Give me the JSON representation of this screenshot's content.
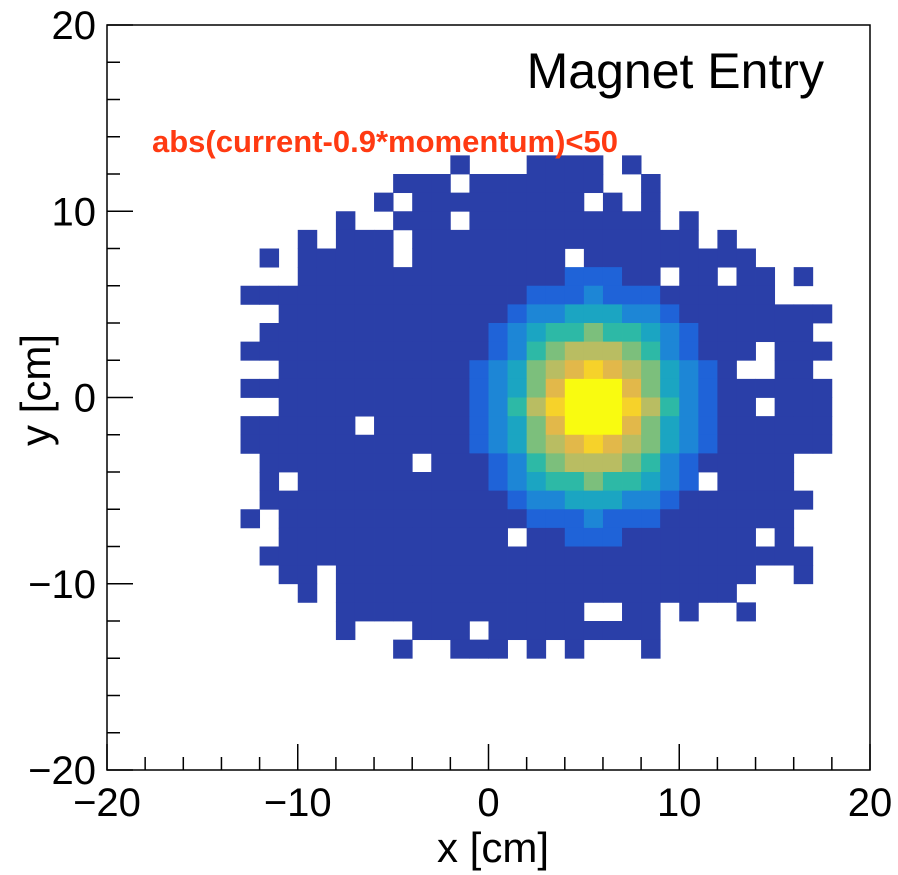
{
  "chart_data": {
    "type": "heatmap",
    "title": "Magnet Entry",
    "annotation": "abs(current-0.9*momentum)<50",
    "xlabel": "x [cm]",
    "ylabel": "y [cm]",
    "xlim": [
      -20,
      20
    ],
    "ylim": [
      -20,
      20
    ],
    "xticks": [
      -20,
      -10,
      0,
      10,
      20
    ],
    "yticks": [
      -20,
      -10,
      0,
      10,
      20
    ],
    "xtick_labels": [
      "−20",
      "−10",
      "0",
      "10",
      "20"
    ],
    "ytick_labels": [
      "−20",
      "−10",
      "0",
      "10",
      "20"
    ],
    "bin_width_cm": 1,
    "grid": false,
    "colormap": [
      "#2a3fa8",
      "#1f63d8",
      "#1d86d6",
      "#1ba5c2",
      "#2db9a6",
      "#7cbf7c",
      "#b9bd62",
      "#e2b84a",
      "#f6d22a",
      "#f9fb10"
    ],
    "annotation_color": "#ff3a12",
    "populated_region": {
      "x_range": [
        -13,
        18
      ],
      "y_range": [
        -14,
        12
      ],
      "description_peak": "maximum intensity near x = 5.5 cm, y = -0.5 cm"
    },
    "peak": {
      "x": 5.5,
      "y": -0.5
    }
  }
}
